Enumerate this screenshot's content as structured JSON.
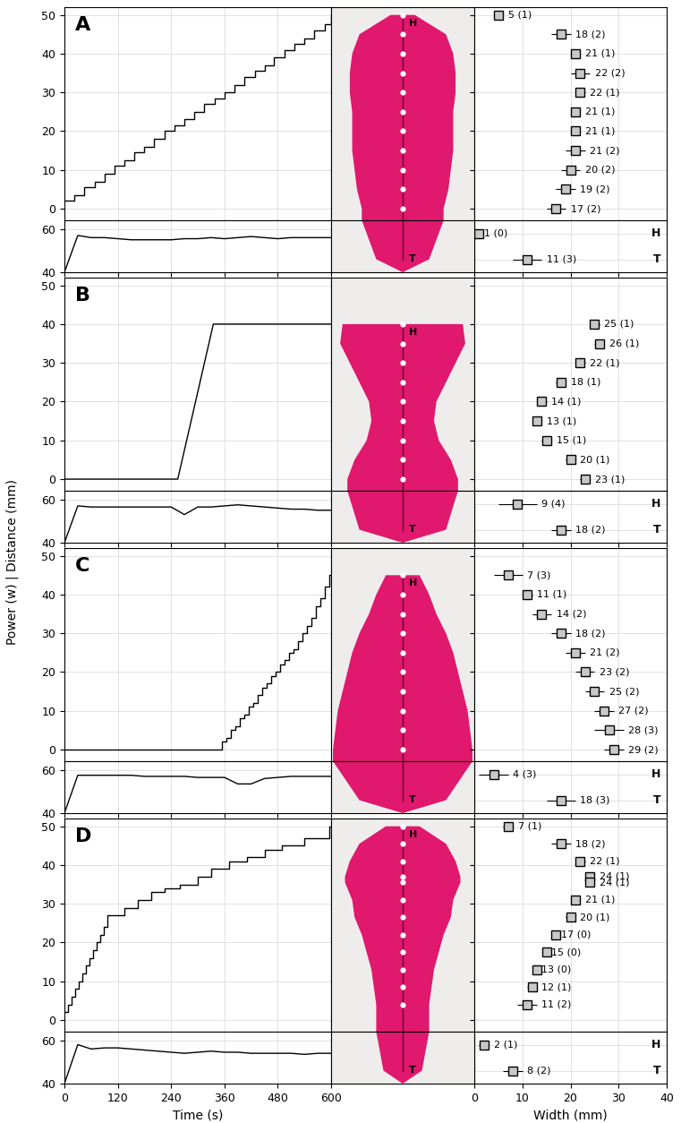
{
  "chart_data": [
    {
      "type": "line",
      "title": "A",
      "distance": {
        "type": "step",
        "color": "#000000",
        "x": [
          0,
          22,
          45,
          68,
          90,
          112,
          135,
          158,
          180,
          202,
          225,
          248,
          270,
          292,
          315,
          338,
          360,
          382,
          405,
          428,
          450,
          472,
          495,
          518,
          540,
          562,
          585,
          600
        ],
        "values": [
          2,
          3.5,
          5.5,
          7,
          9,
          11,
          12.5,
          14.5,
          16,
          18,
          20,
          21.5,
          23,
          25,
          27,
          28.5,
          30,
          32,
          34,
          35.5,
          37,
          39,
          41,
          42.5,
          44,
          46,
          47.5,
          50
        ]
      },
      "power": {
        "type": "line",
        "color": "#000000",
        "x": [
          0,
          30,
          60,
          90,
          120,
          150,
          180,
          210,
          240,
          270,
          300,
          330,
          360,
          390,
          420,
          450,
          480,
          510,
          540,
          570,
          600
        ],
        "values": [
          40,
          57,
          56,
          56,
          55.5,
          55,
          55,
          55,
          55,
          55.5,
          55.5,
          56,
          55.5,
          56,
          56.5,
          56,
          55.5,
          56,
          56,
          56,
          56
        ]
      },
      "widths": {
        "type": "box",
        "color": "#c8c8c8",
        "positions": [
          50,
          45,
          40,
          35,
          30,
          25,
          20,
          15,
          10,
          5,
          0
        ],
        "values": [
          5,
          18,
          21,
          22,
          22,
          21,
          21,
          21,
          20,
          19,
          17
        ],
        "error": [
          1,
          2,
          1,
          2,
          1,
          1,
          1,
          2,
          2,
          2,
          2
        ],
        "value_labels": [
          "5 (1)",
          "18 (2)",
          "21 (1)",
          "22 (2)",
          "22 (1)",
          "21 (1)",
          "21 (1)",
          "21 (2)",
          "20 (2)",
          "19 (2)",
          "17 (2)"
        ]
      },
      "end_widths": {
        "type": "box",
        "color": "#c8c8c8",
        "categories": [
          "H",
          "T"
        ],
        "values": [
          1,
          11
        ],
        "error": [
          0,
          3
        ],
        "value_labels": [
          "1 (0)",
          "11 (3)"
        ]
      }
    },
    {
      "type": "line",
      "title": "B",
      "distance": {
        "type": "line",
        "color": "#000000",
        "x": [
          0,
          255,
          335,
          600
        ],
        "values": [
          0,
          0,
          40,
          40
        ]
      },
      "power": {
        "type": "line",
        "color": "#000000",
        "x": [
          0,
          30,
          60,
          90,
          120,
          150,
          180,
          210,
          240,
          270,
          300,
          330,
          360,
          390,
          420,
          450,
          480,
          510,
          540,
          570,
          600
        ],
        "values": [
          40,
          57,
          56.5,
          56.5,
          56.5,
          56.5,
          56.5,
          56.5,
          56.5,
          53,
          56.5,
          56.5,
          57,
          57.5,
          57,
          56.5,
          56,
          55.5,
          55.5,
          55,
          55
        ]
      },
      "widths": {
        "type": "box",
        "color": "#c8c8c8",
        "positions": [
          40,
          35,
          30,
          25,
          20,
          15,
          10,
          5,
          0
        ],
        "values": [
          25,
          26,
          22,
          18,
          14,
          13,
          15,
          20,
          23
        ],
        "error": [
          1,
          1,
          1,
          1,
          1,
          1,
          1,
          1,
          1
        ],
        "value_labels": [
          "25 (1)",
          "26 (1)",
          "22 (1)",
          "18 (1)",
          "14 (1)",
          "13 (1)",
          "15 (1)",
          "20 (1)",
          "23 (1)"
        ]
      },
      "end_widths": {
        "type": "box",
        "color": "#c8c8c8",
        "categories": [
          "H",
          "T"
        ],
        "values": [
          9,
          18
        ],
        "error": [
          4,
          2
        ],
        "value_labels": [
          "9 (4)",
          "18 (2)"
        ]
      }
    },
    {
      "type": "line",
      "title": "C",
      "distance": {
        "type": "step",
        "color": "#000000",
        "x": [
          0,
          355,
          365,
          375,
          385,
          395,
          405,
          415,
          425,
          435,
          445,
          455,
          465,
          475,
          485,
          495,
          505,
          515,
          525,
          535,
          545,
          555,
          565,
          575,
          585,
          595,
          600
        ],
        "values": [
          0,
          2,
          3,
          5,
          6,
          8,
          9,
          11,
          12,
          14,
          16,
          17,
          19,
          20,
          22,
          23,
          25,
          26,
          28,
          30,
          32,
          34,
          37,
          39,
          42,
          45,
          45
        ]
      },
      "power": {
        "type": "line",
        "color": "#000000",
        "x": [
          0,
          30,
          60,
          90,
          120,
          150,
          180,
          210,
          240,
          270,
          300,
          330,
          360,
          390,
          420,
          450,
          480,
          510,
          540,
          570,
          600
        ],
        "values": [
          40,
          57.5,
          57.5,
          57.5,
          57.5,
          57.5,
          57,
          57,
          57,
          57,
          56.5,
          56.5,
          56.5,
          53.5,
          53.5,
          56,
          56.5,
          57,
          57,
          57,
          57
        ]
      },
      "widths": {
        "type": "box",
        "color": "#c8c8c8",
        "positions": [
          45,
          40,
          35,
          30,
          25,
          20,
          15,
          10,
          5,
          0
        ],
        "values": [
          7,
          11,
          14,
          18,
          21,
          23,
          25,
          27,
          28,
          29
        ],
        "error": [
          3,
          1,
          2,
          2,
          2,
          2,
          2,
          2,
          3,
          2
        ],
        "value_labels": [
          "7 (3)",
          "11 (1)",
          "14 (2)",
          "18 (2)",
          "21 (2)",
          "23 (2)",
          "25 (2)",
          "27 (2)",
          "28 (3)",
          "29 (2)"
        ]
      },
      "end_widths": {
        "type": "box",
        "color": "#c8c8c8",
        "categories": [
          "H",
          "T"
        ],
        "values": [
          4,
          18
        ],
        "error": [
          3,
          3
        ],
        "value_labels": [
          "4 (3)",
          "18 (3)"
        ]
      }
    },
    {
      "type": "line",
      "title": "D",
      "distance": {
        "type": "step",
        "color": "#000000",
        "x": [
          0,
          8,
          16,
          24,
          32,
          40,
          48,
          56,
          64,
          72,
          80,
          88,
          96,
          135,
          165,
          195,
          225,
          260,
          300,
          330,
          370,
          410,
          450,
          490,
          540,
          595,
          600
        ],
        "values": [
          2,
          4,
          6,
          8,
          10,
          12,
          14,
          16,
          18,
          20,
          22,
          24,
          27,
          29,
          31,
          33,
          34,
          35,
          37,
          39,
          41,
          42,
          44,
          45,
          47,
          50,
          50
        ]
      },
      "power": {
        "type": "line",
        "color": "#000000",
        "x": [
          0,
          30,
          60,
          90,
          120,
          150,
          180,
          210,
          240,
          270,
          300,
          330,
          360,
          390,
          420,
          450,
          480,
          510,
          540,
          570,
          600
        ],
        "values": [
          40,
          58,
          56,
          56.5,
          56.5,
          56,
          55.5,
          55,
          54.5,
          54,
          54.5,
          55,
          54.5,
          54.5,
          54,
          54,
          54,
          54,
          53.5,
          54,
          54
        ]
      },
      "widths": {
        "type": "box",
        "color": "#c8c8c8",
        "positions": [
          50,
          45.5,
          41,
          37,
          35.5,
          31,
          26.5,
          22,
          17.5,
          13,
          8.5,
          4
        ],
        "values": [
          7,
          18,
          22,
          24,
          24,
          21,
          20,
          17,
          15,
          13,
          12,
          11
        ],
        "error": [
          1,
          2,
          1,
          1,
          1,
          1,
          1,
          0,
          0,
          0,
          1,
          2
        ],
        "value_labels": [
          "7 (1)",
          "18 (2)",
          "22 (1)",
          "24 (1)",
          "24 (1)",
          "21 (1)",
          "20 (1)",
          "17 (0)",
          "15 (0)",
          "13 (0)",
          "12 (1)",
          "11 (2)"
        ]
      },
      "end_widths": {
        "type": "box",
        "color": "#c8c8c8",
        "categories": [
          "H",
          "T"
        ],
        "values": [
          2,
          8
        ],
        "error": [
          1,
          2
        ],
        "value_labels": [
          "2 (1)",
          "8 (2)"
        ]
      }
    }
  ],
  "ylabel": "Power (w) | Distance (mm)",
  "time_axis": {
    "xlabel": "Time (s)",
    "xlim": [
      0,
      600
    ],
    "xticks": [
      0,
      120,
      240,
      360,
      480,
      600
    ]
  },
  "width_axis": {
    "xlabel": "Width (mm)",
    "xlim": [
      0,
      40
    ],
    "xticks": [
      0,
      10,
      20,
      30,
      40
    ]
  },
  "distance_axis": {
    "ylim": [
      -3,
      52
    ],
    "yticks": [
      0,
      10,
      20,
      30,
      40,
      50
    ]
  },
  "power_axis": {
    "ylim": [
      40,
      64
    ],
    "yticks": [
      40,
      60
    ]
  },
  "grid": true
}
